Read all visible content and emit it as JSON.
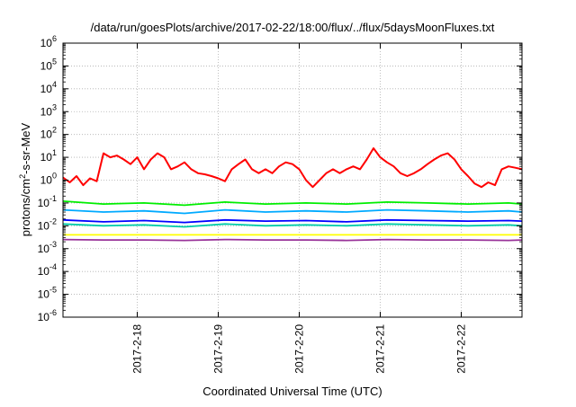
{
  "chart_data": {
    "type": "line",
    "title": "/data/run/goesPlots/archive/2017-02-22/18:00/flux/../flux/5daysMoonFluxes.txt",
    "xlabel": "Coordinated Universal Time (UTC)",
    "ylabel": {
      "prefix": "protons/cm",
      "superscript": "2",
      "suffix": "-s-sr-MeV"
    },
    "y_scale": "log",
    "ylim_exponents": [
      -6,
      6
    ],
    "y_ticks": [
      {
        "base": "10",
        "exp": "6"
      },
      {
        "base": "10",
        "exp": "5"
      },
      {
        "base": "10",
        "exp": "4"
      },
      {
        "base": "10",
        "exp": "3"
      },
      {
        "base": "10",
        "exp": "2"
      },
      {
        "base": "10",
        "exp": "1"
      },
      {
        "base": "10",
        "exp": "0"
      },
      {
        "base": "10",
        "exp": "-1"
      },
      {
        "base": "10",
        "exp": "-2"
      },
      {
        "base": "10",
        "exp": "-3"
      },
      {
        "base": "10",
        "exp": "-4"
      },
      {
        "base": "10",
        "exp": "-5"
      },
      {
        "base": "10",
        "exp": "-6"
      }
    ],
    "x_range": [
      "2017-02-17T02:00",
      "2017-02-22T18:00"
    ],
    "x_ticks": [
      {
        "label": "2017-2-18",
        "date": "2017-02-18T00:00"
      },
      {
        "label": "2017-2-19",
        "date": "2017-02-19T00:00"
      },
      {
        "label": "2017-2-20",
        "date": "2017-02-20T00:00"
      },
      {
        "label": "2017-2-21",
        "date": "2017-02-21T00:00"
      },
      {
        "label": "2017-2-22",
        "date": "2017-02-22T00:00"
      }
    ],
    "grid": true,
    "legend": "none",
    "series": [
      {
        "color": "#ff0000",
        "x": [
          "2017-02-17T02:00",
          "2017-02-17T04:00",
          "2017-02-17T06:00",
          "2017-02-17T08:00",
          "2017-02-17T10:00",
          "2017-02-17T12:00",
          "2017-02-17T14:00",
          "2017-02-17T16:00",
          "2017-02-17T18:00",
          "2017-02-17T20:00",
          "2017-02-17T22:00",
          "2017-02-18T00:00",
          "2017-02-18T02:00",
          "2017-02-18T04:00",
          "2017-02-18T06:00",
          "2017-02-18T08:00",
          "2017-02-18T10:00",
          "2017-02-18T12:00",
          "2017-02-18T14:00",
          "2017-02-18T16:00",
          "2017-02-18T18:00",
          "2017-02-18T20:00",
          "2017-02-18T22:00",
          "2017-02-19T00:00",
          "2017-02-19T02:00",
          "2017-02-19T04:00",
          "2017-02-19T06:00",
          "2017-02-19T08:00",
          "2017-02-19T10:00",
          "2017-02-19T12:00",
          "2017-02-19T14:00",
          "2017-02-19T16:00",
          "2017-02-19T18:00",
          "2017-02-19T20:00",
          "2017-02-19T22:00",
          "2017-02-20T00:00",
          "2017-02-20T02:00",
          "2017-02-20T04:00",
          "2017-02-20T06:00",
          "2017-02-20T08:00",
          "2017-02-20T10:00",
          "2017-02-20T12:00",
          "2017-02-20T14:00",
          "2017-02-20T16:00",
          "2017-02-20T18:00",
          "2017-02-20T20:00",
          "2017-02-20T22:00",
          "2017-02-21T00:00",
          "2017-02-21T02:00",
          "2017-02-21T04:00",
          "2017-02-21T06:00",
          "2017-02-21T08:00",
          "2017-02-21T10:00",
          "2017-02-21T12:00",
          "2017-02-21T14:00",
          "2017-02-21T16:00",
          "2017-02-21T18:00",
          "2017-02-21T20:00",
          "2017-02-21T22:00",
          "2017-02-22T00:00",
          "2017-02-22T02:00",
          "2017-02-22T04:00",
          "2017-02-22T06:00",
          "2017-02-22T08:00",
          "2017-02-22T10:00",
          "2017-02-22T12:00",
          "2017-02-22T14:00",
          "2017-02-22T16:00",
          "2017-02-22T18:00"
        ],
        "y": [
          1.3,
          0.8,
          1.5,
          0.6,
          1.2,
          0.9,
          15,
          10,
          12,
          8,
          5,
          10,
          3,
          8,
          15,
          10,
          3,
          4,
          6,
          3,
          2,
          1.8,
          1.5,
          1.2,
          0.9,
          3,
          5,
          8,
          3,
          2,
          3,
          2,
          4,
          6,
          5,
          3,
          1,
          0.5,
          1,
          2,
          3,
          2,
          3,
          4,
          3,
          8,
          25,
          10,
          6,
          4,
          2,
          1.5,
          2,
          3,
          5,
          8,
          12,
          15,
          8,
          3,
          1.5,
          0.7,
          0.5,
          0.8,
          0.6,
          3,
          4,
          3.5,
          3
        ]
      },
      {
        "color": "#00ee00",
        "x": [
          "2017-02-17T02:00",
          "2017-02-17T14:00",
          "2017-02-18T02:00",
          "2017-02-18T14:00",
          "2017-02-19T02:00",
          "2017-02-19T14:00",
          "2017-02-20T02:00",
          "2017-02-20T14:00",
          "2017-02-21T02:00",
          "2017-02-21T14:00",
          "2017-02-22T02:00",
          "2017-02-22T14:00",
          "2017-02-22T18:00"
        ],
        "y": [
          0.12,
          0.09,
          0.1,
          0.08,
          0.11,
          0.09,
          0.1,
          0.09,
          0.11,
          0.1,
          0.09,
          0.1,
          0.09
        ]
      },
      {
        "color": "#00aaff",
        "x": [
          "2017-02-17T02:00",
          "2017-02-17T14:00",
          "2017-02-18T02:00",
          "2017-02-18T14:00",
          "2017-02-19T02:00",
          "2017-02-19T14:00",
          "2017-02-20T02:00",
          "2017-02-20T14:00",
          "2017-02-21T02:00",
          "2017-02-21T14:00",
          "2017-02-22T02:00",
          "2017-02-22T14:00",
          "2017-02-22T18:00"
        ],
        "y": [
          0.05,
          0.04,
          0.045,
          0.035,
          0.05,
          0.04,
          0.045,
          0.04,
          0.05,
          0.045,
          0.04,
          0.045,
          0.04
        ]
      },
      {
        "color": "#00ccaa",
        "x": [
          "2017-02-17T02:00",
          "2017-02-17T14:00",
          "2017-02-18T02:00",
          "2017-02-18T14:00",
          "2017-02-19T02:00",
          "2017-02-19T14:00",
          "2017-02-20T02:00",
          "2017-02-20T14:00",
          "2017-02-21T02:00",
          "2017-02-21T14:00",
          "2017-02-22T02:00",
          "2017-02-22T14:00",
          "2017-02-22T18:00"
        ],
        "y": [
          0.012,
          0.01,
          0.011,
          0.009,
          0.012,
          0.01,
          0.011,
          0.01,
          0.012,
          0.011,
          0.01,
          0.011,
          0.01
        ]
      },
      {
        "color": "#0000ff",
        "x": [
          "2017-02-17T02:00",
          "2017-02-17T14:00",
          "2017-02-18T02:00",
          "2017-02-18T14:00",
          "2017-02-19T02:00",
          "2017-02-19T14:00",
          "2017-02-20T02:00",
          "2017-02-20T14:00",
          "2017-02-21T02:00",
          "2017-02-21T14:00",
          "2017-02-22T02:00",
          "2017-02-22T14:00",
          "2017-02-22T18:00"
        ],
        "y": [
          0.018,
          0.015,
          0.017,
          0.014,
          0.018,
          0.016,
          0.017,
          0.015,
          0.018,
          0.017,
          0.016,
          0.017,
          0.016
        ]
      },
      {
        "color": "#ffff00",
        "x": [
          "2017-02-17T02:00",
          "2017-02-17T14:00",
          "2017-02-18T02:00",
          "2017-02-18T14:00",
          "2017-02-19T02:00",
          "2017-02-19T14:00",
          "2017-02-20T02:00",
          "2017-02-20T14:00",
          "2017-02-21T02:00",
          "2017-02-21T14:00",
          "2017-02-22T02:00",
          "2017-02-22T14:00",
          "2017-02-22T18:00"
        ],
        "y": [
          0.004,
          0.004,
          0.004,
          0.004,
          0.004,
          0.004,
          0.004,
          0.004,
          0.004,
          0.004,
          0.004,
          0.004,
          0.004
        ]
      },
      {
        "color": "#993399",
        "x": [
          "2017-02-17T02:00",
          "2017-02-17T14:00",
          "2017-02-18T02:00",
          "2017-02-18T14:00",
          "2017-02-19T02:00",
          "2017-02-19T14:00",
          "2017-02-20T02:00",
          "2017-02-20T14:00",
          "2017-02-21T02:00",
          "2017-02-21T14:00",
          "2017-02-22T02:00",
          "2017-02-22T14:00",
          "2017-02-22T18:00"
        ],
        "y": [
          0.0025,
          0.0024,
          0.0024,
          0.0023,
          0.0025,
          0.0024,
          0.0024,
          0.0023,
          0.0025,
          0.0024,
          0.0024,
          0.0023,
          0.0024
        ]
      }
    ]
  }
}
